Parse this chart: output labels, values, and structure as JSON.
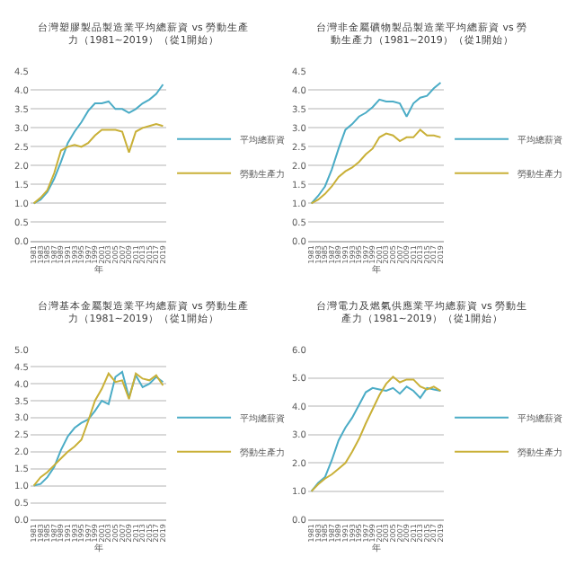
{
  "chart_data": [
    {
      "type": "line",
      "title": "台灣塑膠製品製造業平均總薪資 vs 勞動生產力（1981~2019）（從1開始）",
      "xlabel": "年",
      "grid": "y",
      "legend": "right",
      "x": [
        1981,
        1983,
        1985,
        1987,
        1989,
        1991,
        1993,
        1995,
        1997,
        1999,
        2001,
        2003,
        2005,
        2007,
        2009,
        2011,
        2013,
        2015,
        2017,
        2019
      ],
      "xlim": [
        1980,
        2020
      ],
      "xticks": [
        1981,
        1983,
        1985,
        1987,
        1989,
        1991,
        1993,
        1995,
        1997,
        1999,
        2001,
        2003,
        2005,
        2007,
        2009,
        2011,
        2013,
        2015,
        2017,
        2019
      ],
      "ylim": [
        0,
        4.5
      ],
      "yticks": [
        {
          "value": 0,
          "label": "0.0"
        },
        {
          "value": 0.5,
          "label": "0.5"
        },
        {
          "value": 1,
          "label": "1.0"
        },
        {
          "value": 1.5,
          "label": "1.5"
        },
        {
          "value": 2,
          "label": "2.0"
        },
        {
          "value": 2.5,
          "label": "2.5"
        },
        {
          "value": 3,
          "label": "3.0"
        },
        {
          "value": 3.5,
          "label": "3.5"
        },
        {
          "value": 4,
          "label": "4.0"
        },
        {
          "value": 4.5,
          "label": "4.5"
        }
      ],
      "series": [
        {
          "name": "平均總薪資",
          "color": "#4bacc6",
          "values": [
            1.0,
            1.1,
            1.3,
            1.65,
            2.1,
            2.6,
            2.9,
            3.15,
            3.45,
            3.65,
            3.65,
            3.7,
            3.5,
            3.5,
            3.4,
            3.5,
            3.65,
            3.75,
            3.9,
            4.15
          ]
        },
        {
          "name": "勞動生產力",
          "color": "#c9b037",
          "values": [
            1.0,
            1.15,
            1.35,
            1.8,
            2.4,
            2.5,
            2.55,
            2.5,
            2.6,
            2.8,
            2.95,
            2.95,
            2.95,
            2.9,
            2.35,
            2.9,
            3.0,
            3.05,
            3.1,
            3.05
          ]
        }
      ]
    },
    {
      "type": "line",
      "title": "台灣非金屬礦物製品製造業平均總薪資 vs 勞動生產力（1981~2019）（從1開始）",
      "xlabel": "年",
      "grid": "y",
      "legend": "right",
      "x": [
        1981,
        1983,
        1985,
        1987,
        1989,
        1991,
        1993,
        1995,
        1997,
        1999,
        2001,
        2003,
        2005,
        2007,
        2009,
        2011,
        2013,
        2015,
        2017,
        2019
      ],
      "xlim": [
        1980,
        2020
      ],
      "xticks": [
        1981,
        1983,
        1985,
        1987,
        1989,
        1991,
        1993,
        1995,
        1997,
        1999,
        2001,
        2003,
        2005,
        2007,
        2009,
        2011,
        2013,
        2015,
        2017,
        2019
      ],
      "ylim": [
        0,
        4.5
      ],
      "yticks": [
        {
          "value": 0,
          "label": "0.0"
        },
        {
          "value": 0.5,
          "label": "0.5"
        },
        {
          "value": 1,
          "label": "1.0"
        },
        {
          "value": 1.5,
          "label": "1.5"
        },
        {
          "value": 2,
          "label": "2.0"
        },
        {
          "value": 2.5,
          "label": "2.5"
        },
        {
          "value": 3,
          "label": "3.0"
        },
        {
          "value": 3.5,
          "label": "3.5"
        },
        {
          "value": 4,
          "label": "4.0"
        },
        {
          "value": 4.5,
          "label": "4.5"
        }
      ],
      "series": [
        {
          "name": "平均總薪資",
          "color": "#4bacc6",
          "values": [
            1.0,
            1.2,
            1.45,
            1.9,
            2.45,
            2.95,
            3.1,
            3.3,
            3.4,
            3.55,
            3.75,
            3.7,
            3.7,
            3.65,
            3.3,
            3.65,
            3.8,
            3.85,
            4.05,
            4.2
          ]
        },
        {
          "name": "勞動生產力",
          "color": "#c9b037",
          "values": [
            1.0,
            1.1,
            1.25,
            1.45,
            1.7,
            1.85,
            1.95,
            2.1,
            2.3,
            2.45,
            2.75,
            2.85,
            2.8,
            2.65,
            2.75,
            2.75,
            2.95,
            2.8,
            2.8,
            2.75
          ]
        }
      ]
    },
    {
      "type": "line",
      "title": "台灣基本金屬製造業平均總薪資 vs 勞動生產力（1981~2019）（從1開始）",
      "xlabel": "年",
      "grid": "y",
      "legend": "right",
      "x": [
        1981,
        1983,
        1985,
        1987,
        1989,
        1991,
        1993,
        1995,
        1997,
        1999,
        2001,
        2003,
        2005,
        2007,
        2009,
        2011,
        2013,
        2015,
        2017,
        2019
      ],
      "xlim": [
        1980,
        2020
      ],
      "xticks": [
        1981,
        1983,
        1985,
        1987,
        1989,
        1991,
        1993,
        1995,
        1997,
        1999,
        2001,
        2003,
        2005,
        2007,
        2009,
        2011,
        2013,
        2015,
        2017,
        2019
      ],
      "ylim": [
        0,
        5
      ],
      "yticks": [
        {
          "value": 0,
          "label": "0.0"
        },
        {
          "value": 0.5,
          "label": "0.5"
        },
        {
          "value": 1,
          "label": "1.0"
        },
        {
          "value": 1.5,
          "label": "1.5"
        },
        {
          "value": 2,
          "label": "2.0"
        },
        {
          "value": 2.5,
          "label": "2.5"
        },
        {
          "value": 3,
          "label": "3.0"
        },
        {
          "value": 3.5,
          "label": "3.5"
        },
        {
          "value": 4,
          "label": "4.0"
        },
        {
          "value": 4.5,
          "label": "4.5"
        },
        {
          "value": 5,
          "label": "5.0"
        }
      ],
      "series": [
        {
          "name": "平均總薪資",
          "color": "#4bacc6",
          "values": [
            1.0,
            1.05,
            1.25,
            1.55,
            2.05,
            2.45,
            2.7,
            2.85,
            2.95,
            3.2,
            3.5,
            3.4,
            4.2,
            4.35,
            3.6,
            4.25,
            3.9,
            4.0,
            4.2,
            4.05
          ]
        },
        {
          "name": "勞動生產力",
          "color": "#c9b037",
          "values": [
            1.0,
            1.25,
            1.4,
            1.6,
            1.8,
            2.0,
            2.15,
            2.35,
            2.9,
            3.5,
            3.85,
            4.3,
            4.05,
            4.1,
            3.55,
            4.3,
            4.15,
            4.1,
            4.25,
            3.95
          ]
        }
      ]
    },
    {
      "type": "line",
      "title": "台灣電力及燃氣供應業平均總薪資 vs 勞動生產力（1981~2019）（從1開始）",
      "xlabel": "年",
      "grid": "y",
      "legend": "right",
      "x": [
        1981,
        1983,
        1985,
        1987,
        1989,
        1991,
        1993,
        1995,
        1997,
        1999,
        2001,
        2003,
        2005,
        2007,
        2009,
        2011,
        2013,
        2015,
        2017,
        2019
      ],
      "xlim": [
        1980,
        2020
      ],
      "xticks": [
        1981,
        1983,
        1985,
        1987,
        1989,
        1991,
        1993,
        1995,
        1997,
        1999,
        2001,
        2003,
        2005,
        2007,
        2009,
        2011,
        2013,
        2015,
        2017,
        2019
      ],
      "ylim": [
        0,
        6
      ],
      "yticks": [
        {
          "value": 0,
          "label": "0.0"
        },
        {
          "value": 1,
          "label": "1.0"
        },
        {
          "value": 2,
          "label": "2.0"
        },
        {
          "value": 3,
          "label": "3.0"
        },
        {
          "value": 4,
          "label": "4.0"
        },
        {
          "value": 5,
          "label": "5.0"
        },
        {
          "value": 6,
          "label": "6.0"
        }
      ],
      "series": [
        {
          "name": "平均總薪資",
          "color": "#4bacc6",
          "values": [
            1.0,
            1.3,
            1.5,
            2.1,
            2.8,
            3.25,
            3.6,
            4.05,
            4.5,
            4.65,
            4.6,
            4.55,
            4.65,
            4.45,
            4.7,
            4.55,
            4.3,
            4.65,
            4.6,
            4.55
          ]
        },
        {
          "name": "勞動生產力",
          "color": "#c9b037",
          "values": [
            1.0,
            1.25,
            1.45,
            1.6,
            1.8,
            2.0,
            2.4,
            2.85,
            3.4,
            3.9,
            4.4,
            4.8,
            5.05,
            4.85,
            4.95,
            4.95,
            4.7,
            4.6,
            4.7,
            4.55
          ]
        }
      ]
    }
  ]
}
